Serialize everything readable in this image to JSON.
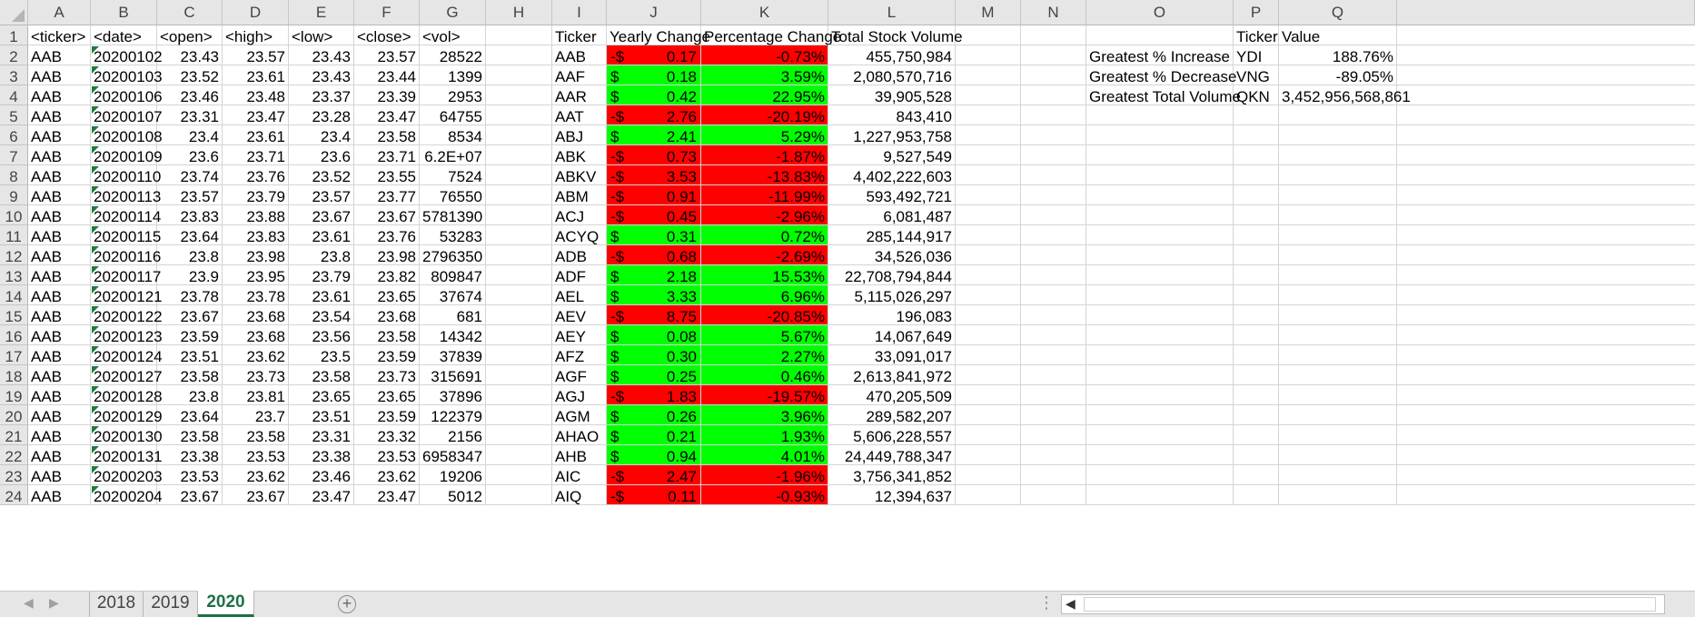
{
  "columns": [
    "A",
    "B",
    "C",
    "D",
    "E",
    "F",
    "G",
    "H",
    "I",
    "J",
    "K",
    "L",
    "M",
    "N",
    "O",
    "P",
    "Q"
  ],
  "raw_header": [
    "<ticker>",
    "<date>",
    "<open>",
    "<high>",
    "<low>",
    "<close>",
    "<vol>"
  ],
  "raw_rows": [
    [
      "AAB",
      "20200102",
      "23.43",
      "23.57",
      "23.43",
      "23.57",
      "28522"
    ],
    [
      "AAB",
      "20200103",
      "23.52",
      "23.61",
      "23.43",
      "23.44",
      "1399"
    ],
    [
      "AAB",
      "20200106",
      "23.46",
      "23.48",
      "23.37",
      "23.39",
      "2953"
    ],
    [
      "AAB",
      "20200107",
      "23.31",
      "23.47",
      "23.28",
      "23.47",
      "64755"
    ],
    [
      "AAB",
      "20200108",
      "23.4",
      "23.61",
      "23.4",
      "23.58",
      "8534"
    ],
    [
      "AAB",
      "20200109",
      "23.6",
      "23.71",
      "23.6",
      "23.71",
      "6.2E+07"
    ],
    [
      "AAB",
      "20200110",
      "23.74",
      "23.76",
      "23.52",
      "23.55",
      "7524"
    ],
    [
      "AAB",
      "20200113",
      "23.57",
      "23.79",
      "23.57",
      "23.77",
      "76550"
    ],
    [
      "AAB",
      "20200114",
      "23.83",
      "23.88",
      "23.67",
      "23.67",
      "5781390"
    ],
    [
      "AAB",
      "20200115",
      "23.64",
      "23.83",
      "23.61",
      "23.76",
      "53283"
    ],
    [
      "AAB",
      "20200116",
      "23.8",
      "23.98",
      "23.8",
      "23.98",
      "2796350"
    ],
    [
      "AAB",
      "20200117",
      "23.9",
      "23.95",
      "23.79",
      "23.82",
      "809847"
    ],
    [
      "AAB",
      "20200121",
      "23.78",
      "23.78",
      "23.61",
      "23.65",
      "37674"
    ],
    [
      "AAB",
      "20200122",
      "23.67",
      "23.68",
      "23.54",
      "23.68",
      "681"
    ],
    [
      "AAB",
      "20200123",
      "23.59",
      "23.68",
      "23.56",
      "23.58",
      "14342"
    ],
    [
      "AAB",
      "20200124",
      "23.51",
      "23.62",
      "23.5",
      "23.59",
      "37839"
    ],
    [
      "AAB",
      "20200127",
      "23.58",
      "23.73",
      "23.58",
      "23.73",
      "315691"
    ],
    [
      "AAB",
      "20200128",
      "23.8",
      "23.81",
      "23.65",
      "23.65",
      "37896"
    ],
    [
      "AAB",
      "20200129",
      "23.64",
      "23.7",
      "23.51",
      "23.59",
      "122379"
    ],
    [
      "AAB",
      "20200130",
      "23.58",
      "23.58",
      "23.31",
      "23.32",
      "2156"
    ],
    [
      "AAB",
      "20200131",
      "23.38",
      "23.53",
      "23.38",
      "23.53",
      "6958347"
    ],
    [
      "AAB",
      "20200203",
      "23.53",
      "23.62",
      "23.46",
      "23.62",
      "19206"
    ],
    [
      "AAB",
      "20200204",
      "23.67",
      "23.67",
      "23.47",
      "23.47",
      "5012"
    ]
  ],
  "summary_header": [
    "Ticker",
    "Yearly Change",
    "Percentage Change",
    "Total Stock Volume"
  ],
  "currency_symbol": "$",
  "summary_rows": [
    {
      "ticker": "AAB",
      "sign": "-",
      "change": "0.17",
      "pct": "-0.73%",
      "volume": "455,750,984",
      "status": "negative"
    },
    {
      "ticker": "AAF",
      "sign": "",
      "change": "0.18",
      "pct": "3.59%",
      "volume": "2,080,570,716",
      "status": "positive"
    },
    {
      "ticker": "AAR",
      "sign": "",
      "change": "0.42",
      "pct": "22.95%",
      "volume": "39,905,528",
      "status": "positive"
    },
    {
      "ticker": "AAT",
      "sign": "-",
      "change": "2.76",
      "pct": "-20.19%",
      "volume": "843,410",
      "status": "negative"
    },
    {
      "ticker": "ABJ",
      "sign": "",
      "change": "2.41",
      "pct": "5.29%",
      "volume": "1,227,953,758",
      "status": "positive"
    },
    {
      "ticker": "ABK",
      "sign": "-",
      "change": "0.73",
      "pct": "-1.87%",
      "volume": "9,527,549",
      "status": "negative"
    },
    {
      "ticker": "ABKV",
      "sign": "-",
      "change": "3.53",
      "pct": "-13.83%",
      "volume": "4,402,222,603",
      "status": "negative"
    },
    {
      "ticker": "ABM",
      "sign": "-",
      "change": "0.91",
      "pct": "-11.99%",
      "volume": "593,492,721",
      "status": "negative"
    },
    {
      "ticker": "ACJ",
      "sign": "-",
      "change": "0.45",
      "pct": "-2.96%",
      "volume": "6,081,487",
      "status": "negative"
    },
    {
      "ticker": "ACYQ",
      "sign": "",
      "change": "0.31",
      "pct": "0.72%",
      "volume": "285,144,917",
      "status": "positive"
    },
    {
      "ticker": "ADB",
      "sign": "-",
      "change": "0.68",
      "pct": "-2.69%",
      "volume": "34,526,036",
      "status": "negative"
    },
    {
      "ticker": "ADF",
      "sign": "",
      "change": "2.18",
      "pct": "15.53%",
      "volume": "22,708,794,844",
      "status": "positive"
    },
    {
      "ticker": "AEL",
      "sign": "",
      "change": "3.33",
      "pct": "6.96%",
      "volume": "5,115,026,297",
      "status": "positive"
    },
    {
      "ticker": "AEV",
      "sign": "-",
      "change": "8.75",
      "pct": "-20.85%",
      "volume": "196,083",
      "status": "negative"
    },
    {
      "ticker": "AEY",
      "sign": "",
      "change": "0.08",
      "pct": "5.67%",
      "volume": "14,067,649",
      "status": "positive"
    },
    {
      "ticker": "AFZ",
      "sign": "",
      "change": "0.30",
      "pct": "2.27%",
      "volume": "33,091,017",
      "status": "positive"
    },
    {
      "ticker": "AGF",
      "sign": "",
      "change": "0.25",
      "pct": "0.46%",
      "volume": "2,613,841,972",
      "status": "positive"
    },
    {
      "ticker": "AGJ",
      "sign": "-",
      "change": "1.83",
      "pct": "-19.57%",
      "volume": "470,205,509",
      "status": "negative"
    },
    {
      "ticker": "AGM",
      "sign": "",
      "change": "0.26",
      "pct": "3.96%",
      "volume": "289,582,207",
      "status": "positive"
    },
    {
      "ticker": "AHAO",
      "sign": "",
      "change": "0.21",
      "pct": "1.93%",
      "volume": "5,606,228,557",
      "status": "positive"
    },
    {
      "ticker": "AHB",
      "sign": "",
      "change": "0.94",
      "pct": "4.01%",
      "volume": "24,449,788,347",
      "status": "positive"
    },
    {
      "ticker": "AIC",
      "sign": "-",
      "change": "2.47",
      "pct": "-1.96%",
      "volume": "3,756,341,852",
      "status": "negative"
    },
    {
      "ticker": "AIQ",
      "sign": "-",
      "change": "0.11",
      "pct": "-0.93%",
      "volume": "12,394,637",
      "status": "negative"
    }
  ],
  "greatest": {
    "header": {
      "ticker": "Ticker",
      "value": "Value"
    },
    "rows": [
      {
        "label": "Greatest % Increase",
        "ticker": "YDI",
        "value": "188.76%"
      },
      {
        "label": "Greatest % Decrease",
        "ticker": "VNG",
        "value": "-89.05%"
      },
      {
        "label": "Greatest Total Volume",
        "ticker": "QKN",
        "value": "3,452,956,568,861"
      }
    ]
  },
  "colors": {
    "positive": "#00ff00",
    "negative": "#ff0000",
    "active_tab": "#1e7145"
  },
  "sheet_tabs": [
    {
      "label": "2018",
      "active": false
    },
    {
      "label": "2019",
      "active": false
    },
    {
      "label": "2020",
      "active": true
    }
  ],
  "add_sheet_label": "+",
  "icons": [
    "add-sheet-icon",
    "scroll-left-icon",
    "scroll-right-icon",
    "tab-options-icon",
    "select-all-icon"
  ]
}
